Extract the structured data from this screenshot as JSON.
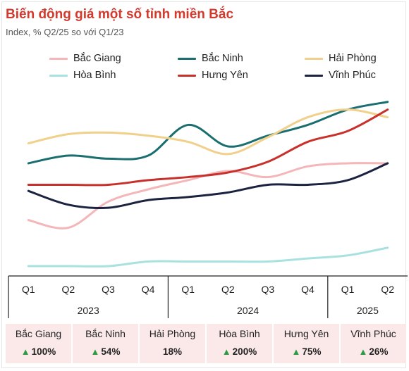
{
  "title": "Biến động giá một số tỉnh miền Bắc",
  "subtitle": "Index, % Q2/25 so với Q1/23",
  "chart_data": {
    "type": "line",
    "title": "Biến động giá một số tỉnh miền Bắc",
    "subtitle": "Index, % Q2/25 so với Q1/23",
    "x": [
      "Q1 2023",
      "Q2 2023",
      "Q3 2023",
      "Q4 2023",
      "Q1 2024",
      "Q2 2024",
      "Q3 2024",
      "Q4 2024",
      "Q1 2025",
      "Q2 2025"
    ],
    "quarter_labels": [
      "Q1",
      "Q2",
      "Q3",
      "Q4",
      "Q1",
      "Q2",
      "Q3",
      "Q4",
      "Q1",
      "Q2"
    ],
    "year_labels": [
      "2023",
      "2024",
      "2025"
    ],
    "ylim": [
      0,
      1
    ],
    "grid": false,
    "legend_position": "top",
    "series": [
      {
        "name": "Bắc Giang",
        "color": "#f4b6b8",
        "values": [
          0.3,
          0.25,
          0.42,
          0.5,
          0.56,
          0.62,
          0.58,
          0.65,
          0.67,
          0.67
        ]
      },
      {
        "name": "Bắc Ninh",
        "color": "#1a6e70",
        "values": [
          0.67,
          0.72,
          0.7,
          0.72,
          0.92,
          0.78,
          0.85,
          0.92,
          1.02,
          1.07
        ]
      },
      {
        "name": "Hải Phòng",
        "color": "#f0d08a",
        "values": [
          0.8,
          0.86,
          0.87,
          0.85,
          0.81,
          0.73,
          0.84,
          0.97,
          1.02,
          0.97
        ]
      },
      {
        "name": "Hòa Bình",
        "color": "#a8e2e0",
        "values": [
          0.0,
          0.0,
          0.0,
          0.03,
          0.03,
          0.03,
          0.03,
          0.05,
          0.07,
          0.12
        ]
      },
      {
        "name": "Hưng Yên",
        "color": "#c8312b",
        "values": [
          0.53,
          0.53,
          0.53,
          0.56,
          0.58,
          0.61,
          0.68,
          0.81,
          0.88,
          1.02
        ]
      },
      {
        "name": "Vĩnh Phúc",
        "color": "#1c2340",
        "values": [
          0.49,
          0.4,
          0.38,
          0.43,
          0.45,
          0.48,
          0.53,
          0.53,
          0.56,
          0.67
        ]
      }
    ]
  },
  "summary": [
    {
      "name": "Bắc Giang",
      "value": "100%",
      "arrow": true
    },
    {
      "name": "Bắc Ninh",
      "value": "54%",
      "arrow": true
    },
    {
      "name": "Hải Phòng",
      "value": "18%",
      "arrow": false
    },
    {
      "name": "Hòa Bình",
      "value": "200%",
      "arrow": true
    },
    {
      "name": "Hưng Yên",
      "value": "75%",
      "arrow": true
    },
    {
      "name": "Vĩnh Phúc",
      "value": "26%",
      "arrow": true
    }
  ],
  "arrow_glyph": "▲"
}
